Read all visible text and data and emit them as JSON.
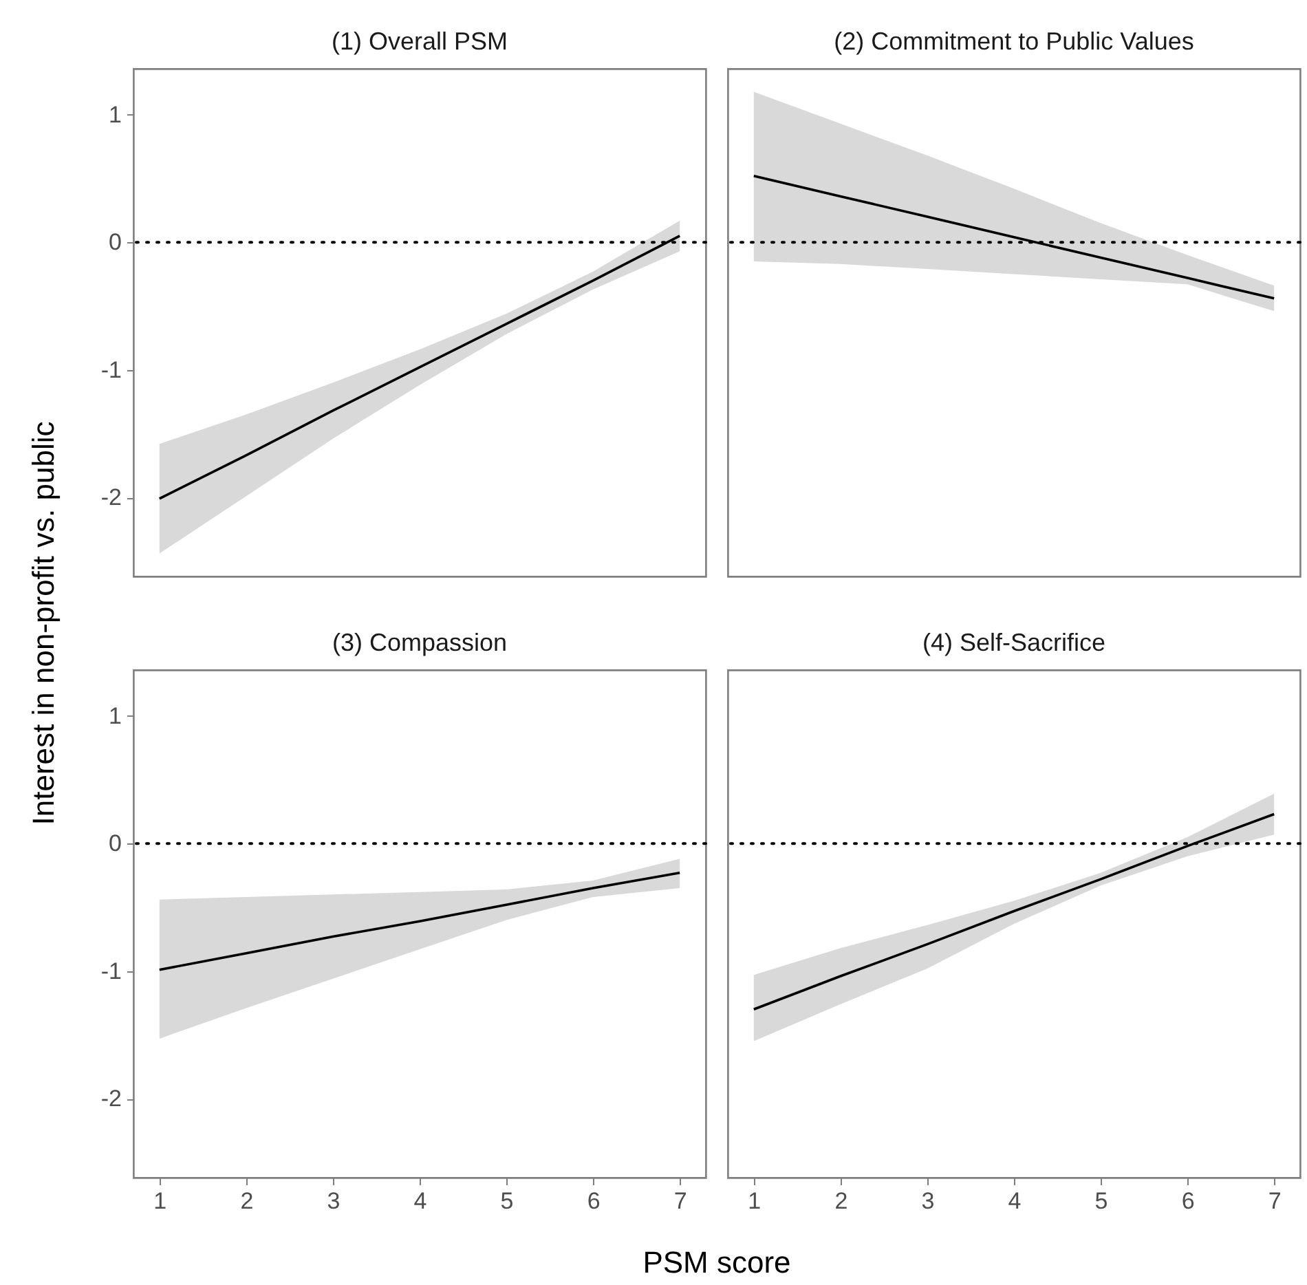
{
  "chart_data": [
    {
      "type": "line",
      "title": "(1) Overall PSM",
      "ylabel": "Interest in non-profit vs. public",
      "x": [
        1,
        2,
        3,
        4,
        5,
        6,
        7
      ],
      "xlim": [
        0.7,
        7.3
      ],
      "xticks": [
        1,
        2,
        3,
        4,
        5,
        6,
        7
      ],
      "ylim": [
        -2.62,
        1.36
      ],
      "yticks": [
        -2,
        -1,
        0,
        1
      ],
      "tick_labels": "y",
      "series": [
        {
          "color": "#000000",
          "values": [
            -2.01,
            -1.67,
            -1.32,
            -0.98,
            -0.64,
            -0.3,
            0.05
          ],
          "lower": [
            -2.44,
            -1.99,
            -1.54,
            -1.12,
            -0.72,
            -0.37,
            -0.07
          ],
          "upper": [
            -1.58,
            -1.35,
            -1.1,
            -0.84,
            -0.56,
            -0.23,
            0.17
          ]
        }
      ],
      "ref_lines": [
        {
          "axis": "y",
          "value": 0,
          "color": "#000000",
          "line_style": "dotted"
        }
      ]
    },
    {
      "type": "line",
      "title": "(2) Commitment to Public Values",
      "x": [
        1,
        2,
        3,
        4,
        5,
        6,
        7
      ],
      "xlim": [
        0.7,
        7.3
      ],
      "xticks": [
        1,
        2,
        3,
        4,
        5,
        6,
        7
      ],
      "ylim": [
        -2.62,
        1.36
      ],
      "yticks": [
        -2,
        -1,
        0,
        1
      ],
      "tick_labels": false,
      "series": [
        {
          "color": "#000000",
          "values": [
            0.52,
            0.36,
            0.2,
            0.04,
            -0.12,
            -0.28,
            -0.44
          ],
          "lower": [
            -0.15,
            -0.17,
            -0.21,
            -0.25,
            -0.29,
            -0.33,
            -0.54
          ],
          "upper": [
            1.18,
            0.93,
            0.68,
            0.42,
            0.15,
            -0.1,
            -0.34
          ]
        }
      ],
      "ref_lines": [
        {
          "axis": "y",
          "value": 0,
          "color": "#000000",
          "line_style": "dotted"
        }
      ]
    },
    {
      "type": "line",
      "title": "(3) Compassion",
      "xlabel": "PSM score",
      "x": [
        1,
        2,
        3,
        4,
        5,
        6,
        7
      ],
      "xlim": [
        0.7,
        7.3
      ],
      "xticks": [
        1,
        2,
        3,
        4,
        5,
        6,
        7
      ],
      "ylim": [
        -2.62,
        1.36
      ],
      "yticks": [
        -2,
        -1,
        0,
        1
      ],
      "series": [
        {
          "color": "#000000",
          "values": [
            -0.99,
            -0.86,
            -0.73,
            -0.61,
            -0.48,
            -0.35,
            -0.23
          ],
          "lower": [
            -1.53,
            -1.29,
            -1.06,
            -0.83,
            -0.6,
            -0.42,
            -0.35
          ],
          "upper": [
            -0.44,
            -0.42,
            -0.4,
            -0.38,
            -0.36,
            -0.29,
            -0.12
          ]
        }
      ],
      "ref_lines": [
        {
          "axis": "y",
          "value": 0,
          "color": "#000000",
          "line_style": "dotted"
        }
      ]
    },
    {
      "type": "line",
      "title": "(4) Self-Sacrifice",
      "x": [
        1,
        2,
        3,
        4,
        5,
        6,
        7
      ],
      "xlim": [
        0.7,
        7.3
      ],
      "xticks": [
        1,
        2,
        3,
        4,
        5,
        6,
        7
      ],
      "ylim": [
        -2.62,
        1.36
      ],
      "yticks": [
        -2,
        -1,
        0,
        1
      ],
      "tick_labels": "x",
      "series": [
        {
          "color": "#000000",
          "values": [
            -1.3,
            -1.04,
            -0.79,
            -0.53,
            -0.28,
            -0.02,
            0.23
          ],
          "lower": [
            -1.55,
            -1.26,
            -0.98,
            -0.63,
            -0.33,
            -0.1,
            0.07
          ],
          "upper": [
            -1.03,
            -0.82,
            -0.64,
            -0.45,
            -0.23,
            0.05,
            0.39
          ]
        }
      ],
      "ref_lines": [
        {
          "axis": "y",
          "value": 0,
          "color": "#000000",
          "line_style": "dotted"
        }
      ]
    }
  ]
}
